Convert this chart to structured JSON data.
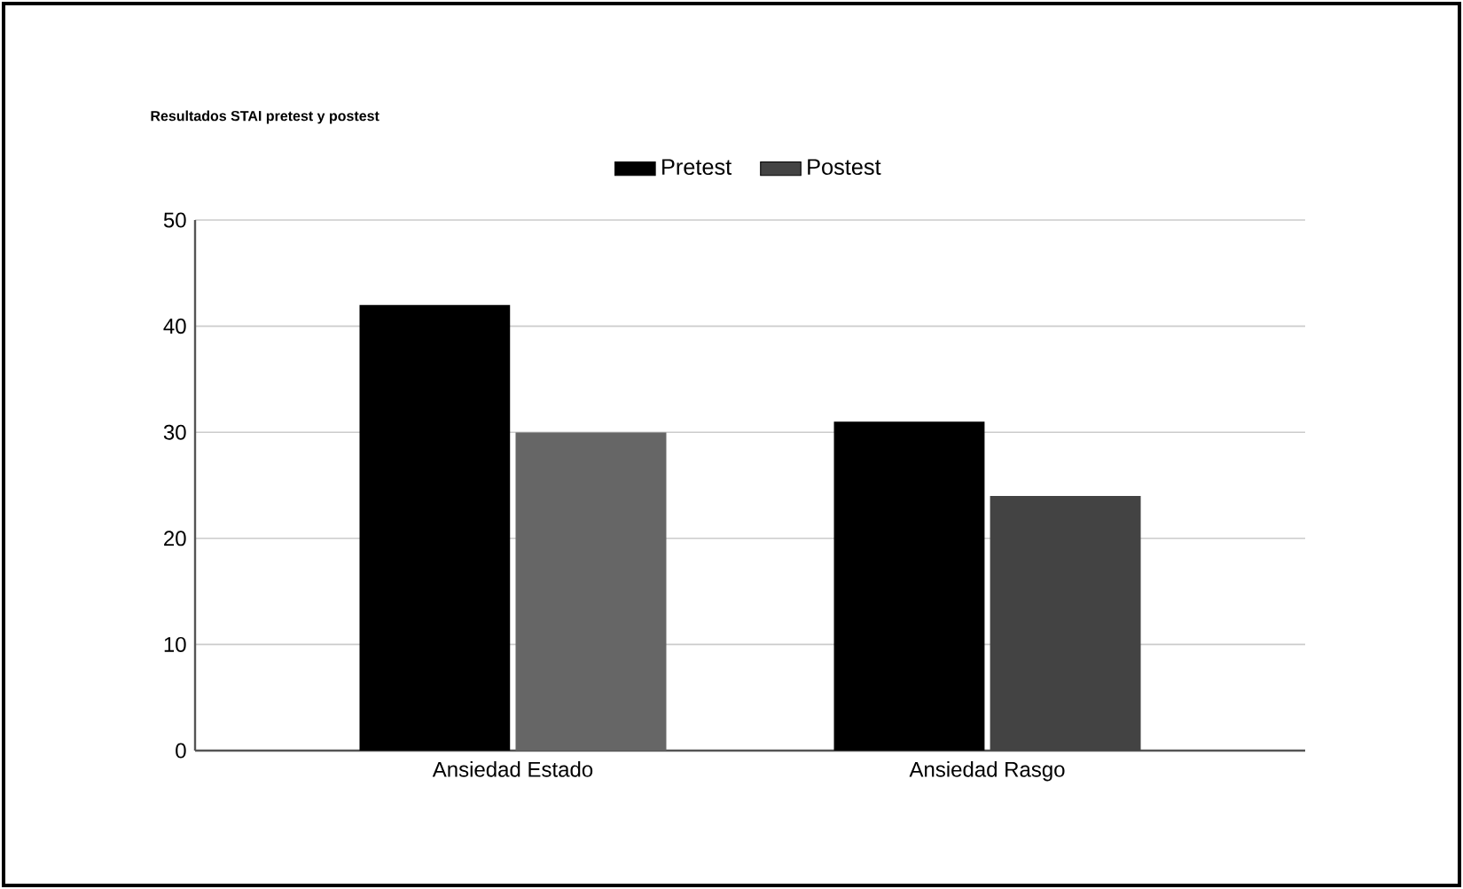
{
  "chart_data": {
    "type": "bar",
    "title": "Resultados STAI pretest y postest",
    "categories": [
      "Ansiedad Estado",
      "Ansiedad Rasgo"
    ],
    "series": [
      {
        "name": "Pretest",
        "color": "#000000",
        "values": [
          42,
          31
        ]
      },
      {
        "name": "Postest",
        "color": "#434343",
        "colors": [
          "#666666",
          "#434343"
        ],
        "values": [
          30,
          24
        ]
      }
    ],
    "ylim": [
      0,
      50
    ],
    "yticks": [
      0,
      10,
      20,
      30,
      40,
      50
    ],
    "grid": "y",
    "legend": "top"
  }
}
